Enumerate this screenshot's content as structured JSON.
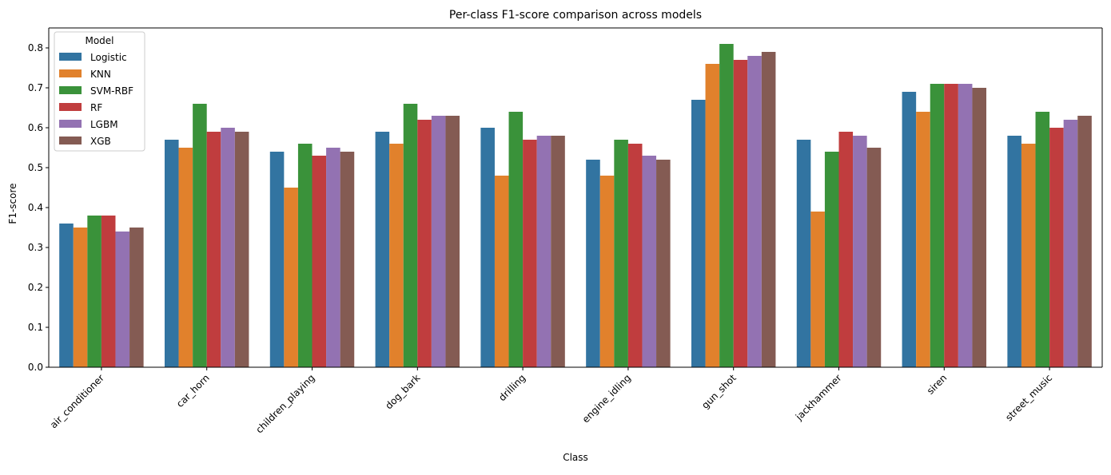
{
  "chart_data": {
    "type": "bar",
    "title": "Per-class F1-score comparison across models",
    "xlabel": "Class",
    "ylabel": "F1-score",
    "ylim": [
      0,
      0.85
    ],
    "yticks": [
      "0.0",
      "0.1",
      "0.2",
      "0.3",
      "0.4",
      "0.5",
      "0.6",
      "0.7",
      "0.8"
    ],
    "grid": false,
    "legend": {
      "title": "Model",
      "position": "top-left"
    },
    "categories": [
      "air_conditioner",
      "car_horn",
      "children_playing",
      "dog_bark",
      "drilling",
      "engine_idling",
      "gun_shot",
      "jackhammer",
      "siren",
      "street_music"
    ],
    "series": [
      {
        "name": "Logistic",
        "color": "#3274a1",
        "values": [
          0.36,
          0.57,
          0.54,
          0.59,
          0.6,
          0.52,
          0.67,
          0.57,
          0.69,
          0.58
        ]
      },
      {
        "name": "KNN",
        "color": "#e1812c",
        "values": [
          0.35,
          0.55,
          0.45,
          0.56,
          0.48,
          0.48,
          0.76,
          0.39,
          0.64,
          0.56
        ]
      },
      {
        "name": "SVM-RBF",
        "color": "#3a923a",
        "values": [
          0.38,
          0.66,
          0.56,
          0.66,
          0.64,
          0.57,
          0.81,
          0.54,
          0.71,
          0.64
        ]
      },
      {
        "name": "RF",
        "color": "#c03d3e",
        "values": [
          0.38,
          0.59,
          0.53,
          0.62,
          0.57,
          0.56,
          0.77,
          0.59,
          0.71,
          0.6
        ]
      },
      {
        "name": "LGBM",
        "color": "#9372b2",
        "values": [
          0.34,
          0.6,
          0.55,
          0.63,
          0.58,
          0.53,
          0.78,
          0.58,
          0.71,
          0.62
        ]
      },
      {
        "name": "XGB",
        "color": "#845b53",
        "values": [
          0.35,
          0.59,
          0.54,
          0.63,
          0.58,
          0.52,
          0.79,
          0.55,
          0.7,
          0.63
        ]
      }
    ]
  }
}
